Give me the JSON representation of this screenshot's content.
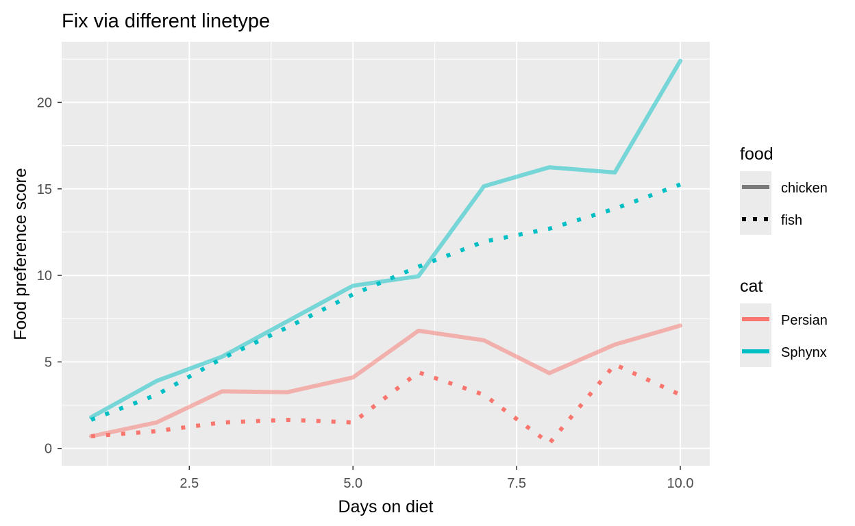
{
  "chart_data": {
    "type": "line",
    "title": "Fix via different linetype",
    "xlabel": "Days on diet",
    "ylabel": "Food preference score",
    "xlim": [
      0.55,
      10.45
    ],
    "ylim": [
      -1.0,
      23.5
    ],
    "x_ticks": [
      2.5,
      5.0,
      7.5,
      10.0
    ],
    "x_tick_labels": [
      "2.5",
      "5.0",
      "7.5",
      "10.0"
    ],
    "y_ticks": [
      0,
      5,
      10,
      15,
      20
    ],
    "y_tick_labels": [
      "0",
      "5",
      "10",
      "15",
      "20"
    ],
    "grid": true,
    "legend_position": "right",
    "x": [
      1,
      2,
      3,
      4,
      5,
      6,
      7,
      8,
      9,
      10
    ],
    "series": [
      {
        "cat": "Persian",
        "food": "chicken",
        "values": [
          0.7,
          1.5,
          3.3,
          3.25,
          4.1,
          6.8,
          6.25,
          4.35,
          6.0,
          7.1
        ]
      },
      {
        "cat": "Persian",
        "food": "fish",
        "values": [
          0.7,
          1.0,
          1.5,
          1.65,
          1.5,
          4.4,
          3.1,
          0.3,
          4.85,
          3.1
        ]
      },
      {
        "cat": "Sphynx",
        "food": "chicken",
        "values": [
          1.8,
          3.9,
          5.3,
          7.35,
          9.4,
          9.95,
          15.15,
          16.25,
          15.95,
          22.4
        ]
      },
      {
        "cat": "Sphynx",
        "food": "fish",
        "values": [
          1.65,
          3.1,
          5.2,
          7.0,
          8.9,
          10.5,
          11.95,
          12.7,
          13.85,
          15.25
        ]
      }
    ],
    "legends": {
      "food": {
        "title": "food",
        "entries": [
          {
            "label": "chicken",
            "linetype": "solid"
          },
          {
            "label": "fish",
            "linetype": "dotted"
          }
        ]
      },
      "cat": {
        "title": "cat",
        "entries": [
          {
            "label": "Persian",
            "color": "#F8766D"
          },
          {
            "label": "Sphynx",
            "color": "#00BFC4"
          }
        ]
      }
    },
    "colors": {
      "Persian": "#F8766D",
      "Sphynx": "#00BFC4",
      "panel": "#EBEBEB",
      "grid": "#FFFFFF"
    }
  }
}
